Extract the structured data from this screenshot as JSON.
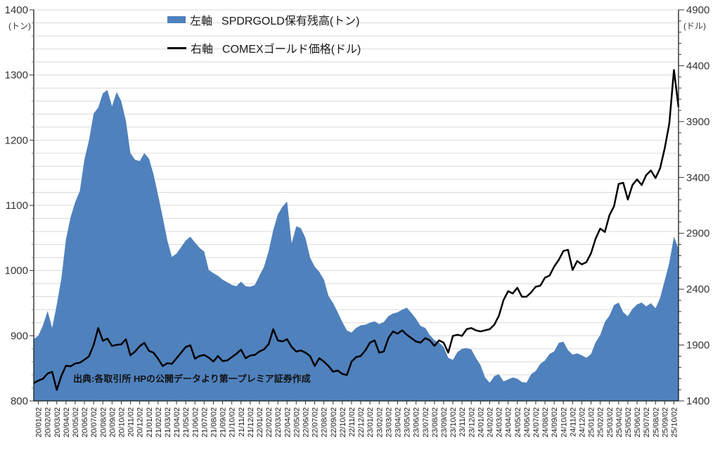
{
  "chart": {
    "legend": {
      "holdings": {
        "axis_label": "左軸",
        "name": "SPDRGOLD保有残高(トン)"
      },
      "price": {
        "axis_label": "右軸",
        "name": "COMEXゴールド価格(ドル)"
      }
    },
    "left_axis_unit": "(トン)",
    "right_axis_unit": "(ドル)",
    "source_note": "出典:各取引所 HPの公開データより第一プレミア証券作成"
  },
  "chart_data": {
    "type": "area",
    "title": "",
    "legend_position": "top-center",
    "grid": {
      "horizontal": true,
      "vertical": false,
      "step_left_units": 20,
      "color": "#D9D9D9"
    },
    "left_axis": {
      "unit": "(トン)",
      "min": 800,
      "max": 1400,
      "major_step": 100,
      "minor_step": 20
    },
    "right_axis": {
      "unit": "(ドル)",
      "min": 1400,
      "max": 4900,
      "major_step": 500,
      "minor_step": 100
    },
    "points_per_month": 2,
    "x_labels": [
      "20/01/02",
      "20/02/02",
      "20/03/02",
      "20/04/02",
      "20/05/02",
      "20/06/02",
      "20/07/02",
      "20/08/02",
      "20/09/02",
      "20/10/02",
      "20/11/02",
      "20/12/02",
      "21/01/02",
      "21/02/02",
      "21/03/02",
      "21/04/02",
      "21/05/02",
      "21/06/02",
      "21/07/02",
      "21/08/02",
      "21/09/02",
      "21/10/02",
      "21/11/02",
      "21/12/02",
      "22/01/02",
      "22/02/02",
      "22/03/02",
      "22/04/02",
      "22/05/02",
      "22/06/02",
      "22/07/02",
      "22/08/02",
      "22/09/02",
      "22/10/02",
      "22/11/02",
      "22/12/02",
      "23/01/02",
      "23/02/02",
      "23/03/02",
      "23/04/02",
      "23/05/02",
      "23/06/02",
      "23/07/02",
      "23/08/02",
      "23/09/02",
      "23/10/02",
      "23/11/02",
      "23/12/02",
      "24/01/02",
      "24/02/02",
      "24/03/02",
      "24/04/02",
      "24/05/02",
      "24/06/02",
      "24/07/02",
      "24/08/02",
      "24/09/02",
      "24/10/02",
      "24/11/02",
      "24/12/02",
      "25/01/02",
      "25/02/02",
      "25/03/02",
      "25/04/02",
      "25/05/02",
      "25/06/02",
      "25/07/02",
      "25/08/02",
      "25/09/02",
      "25/10/02"
    ],
    "series": [
      {
        "name": "左軸 SPDRGOLD保有残高(トン)",
        "type": "area",
        "axis": "left",
        "color": "#4F81BD",
        "values": [
          895,
          900,
          916,
          938,
          912,
          948,
          988,
          1048,
          1082,
          1105,
          1122,
          1170,
          1200,
          1241,
          1250,
          1272,
          1277,
          1252,
          1274,
          1260,
          1230,
          1180,
          1170,
          1168,
          1180,
          1172,
          1148,
          1116,
          1082,
          1046,
          1021,
          1026,
          1036,
          1046,
          1052,
          1043,
          1035,
          1029,
          1001,
          996,
          992,
          986,
          982,
          978,
          976,
          983,
          976,
          975,
          978,
          992,
          1006,
          1030,
          1062,
          1086,
          1098,
          1106,
          1042,
          1068,
          1065,
          1050,
          1020,
          1006,
          998,
          986,
          961,
          950,
          936,
          921,
          908,
          905,
          912,
          916,
          917,
          920,
          922,
          918,
          921,
          930,
          934,
          936,
          940,
          943,
          935,
          926,
          915,
          912,
          901,
          893,
          890,
          883,
          866,
          863,
          875,
          880,
          881,
          879,
          866,
          855,
          836,
          828,
          838,
          841,
          830,
          833,
          836,
          834,
          829,
          828,
          841,
          846,
          857,
          862,
          872,
          876,
          889,
          891,
          878,
          871,
          873,
          870,
          866,
          872,
          890,
          901,
          921,
          931,
          947,
          951,
          936,
          930,
          941,
          948,
          951,
          945,
          950,
          942,
          958,
          985,
          1012,
          1052,
          1034
        ]
      },
      {
        "name": "右軸 COMEXゴールド価格(ドル)",
        "type": "line",
        "axis": "right",
        "color": "#000000",
        "stroke_width": 2.5,
        "values": [
          1560,
          1582,
          1598,
          1645,
          1660,
          1498,
          1625,
          1715,
          1710,
          1735,
          1742,
          1768,
          1800,
          1902,
          2052,
          1938,
          1958,
          1892,
          1902,
          1906,
          1952,
          1808,
          1842,
          1890,
          1920,
          1848,
          1832,
          1778,
          1712,
          1738,
          1732,
          1782,
          1832,
          1882,
          1898,
          1778,
          1802,
          1812,
          1788,
          1752,
          1802,
          1756,
          1762,
          1792,
          1822,
          1858,
          1782,
          1806,
          1812,
          1842,
          1862,
          1908,
          2042,
          1942,
          1932,
          1952,
          1882,
          1842,
          1852,
          1832,
          1802,
          1712,
          1782,
          1752,
          1712,
          1662,
          1672,
          1642,
          1632,
          1752,
          1792,
          1802,
          1852,
          1922,
          1942,
          1832,
          1842,
          1962,
          2022,
          2002,
          2032,
          1992,
          1962,
          1932,
          1922,
          1962,
          1942,
          1892,
          1942,
          1922,
          1832,
          1982,
          1992,
          1982,
          2042,
          2052,
          2032,
          2022,
          2032,
          2042,
          2082,
          2162,
          2302,
          2382,
          2362,
          2412,
          2332,
          2332,
          2372,
          2422,
          2432,
          2502,
          2522,
          2602,
          2662,
          2742,
          2752,
          2572,
          2652,
          2622,
          2642,
          2722,
          2852,
          2942,
          2912,
          3062,
          3142,
          3342,
          3352,
          3202,
          3332,
          3382,
          3332,
          3422,
          3462,
          3395,
          3482,
          3662,
          3882,
          4362,
          4030
        ]
      }
    ]
  }
}
